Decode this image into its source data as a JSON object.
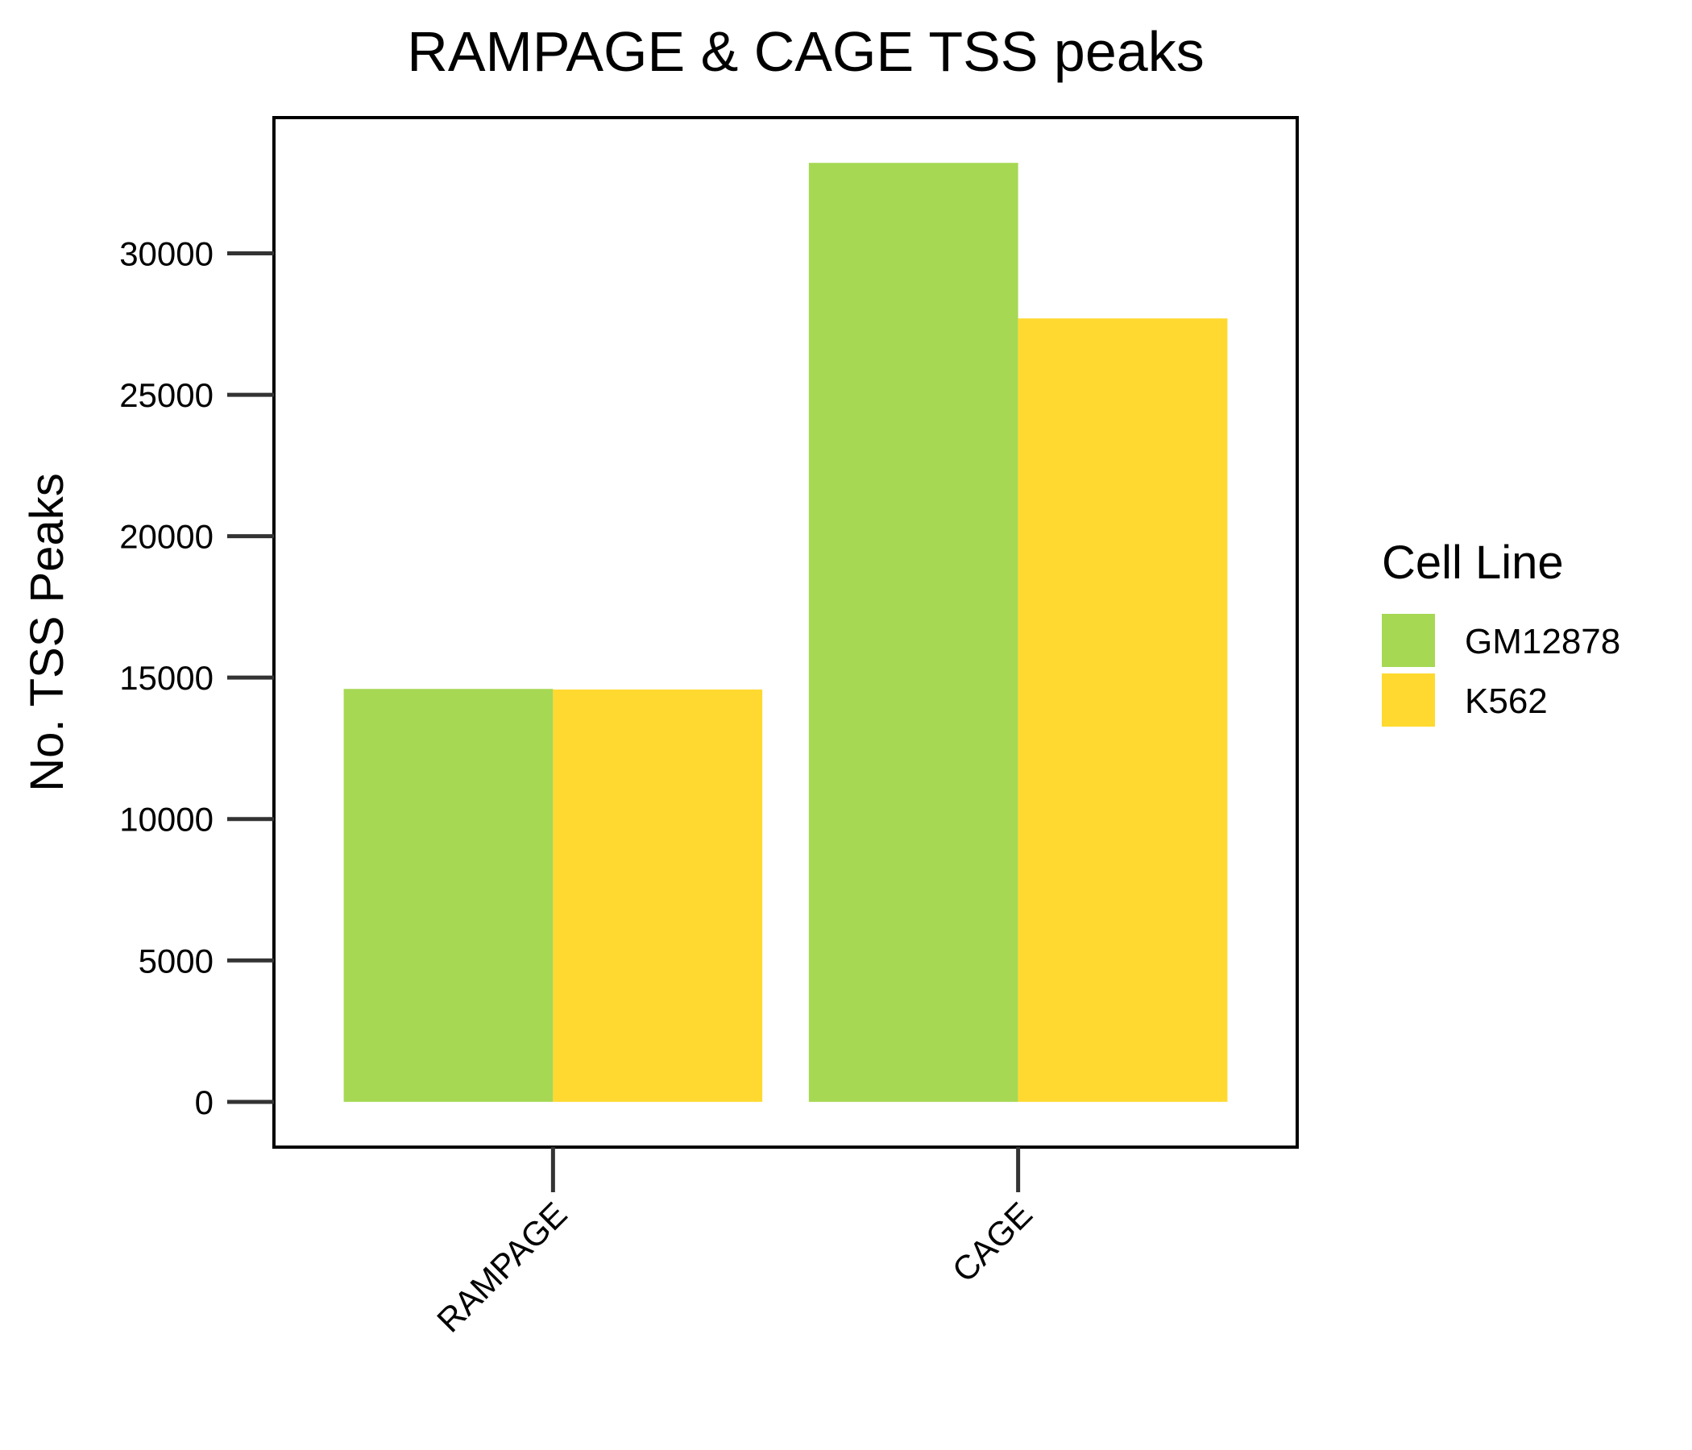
{
  "chart_data": {
    "type": "bar",
    "title": "RAMPAGE & CAGE TSS peaks",
    "xlabel": "",
    "ylabel": "No. TSS Peaks",
    "categories": [
      "RAMPAGE",
      "CAGE"
    ],
    "series": [
      {
        "name": "GM12878",
        "color": "#A6D854",
        "values": [
          14600,
          33200
        ]
      },
      {
        "name": "K562",
        "color": "#FFD92F",
        "values": [
          14580,
          27700
        ]
      }
    ],
    "ylim": [
      -1600,
      34800
    ],
    "yticks": [
      0,
      5000,
      10000,
      15000,
      20000,
      25000,
      30000
    ],
    "legend": {
      "title": "Cell Line",
      "position": "right"
    },
    "grid": false
  }
}
